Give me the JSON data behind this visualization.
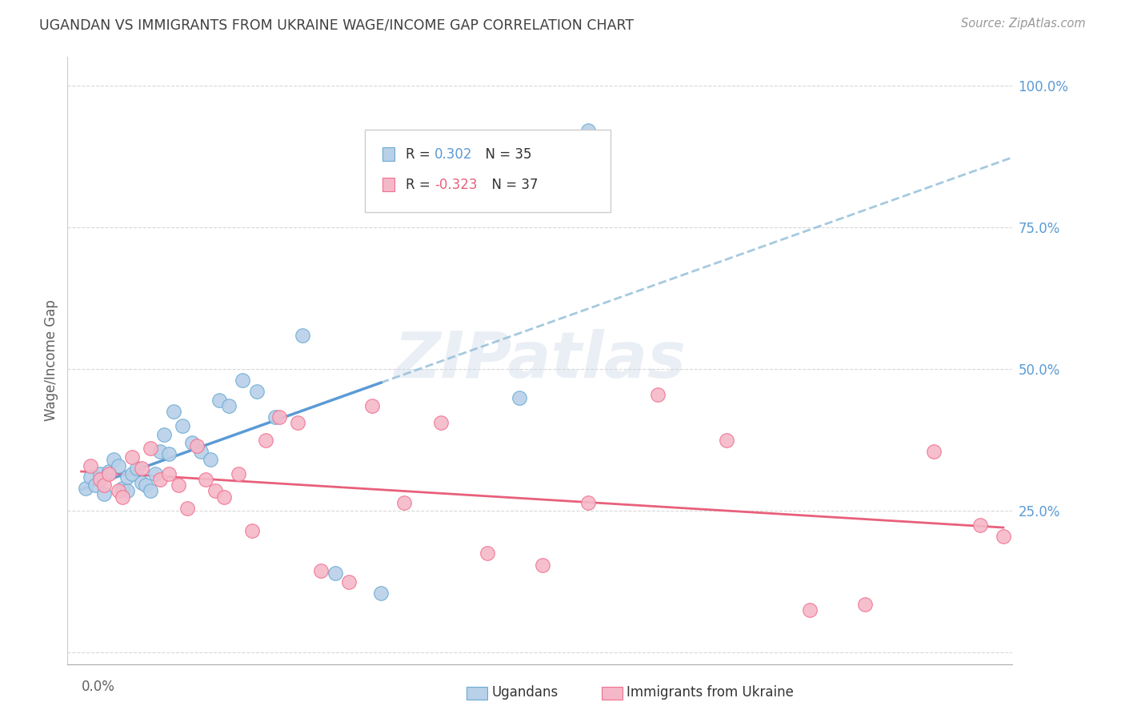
{
  "title": "UGANDAN VS IMMIGRANTS FROM UKRAINE WAGE/INCOME GAP CORRELATION CHART",
  "source": "Source: ZipAtlas.com",
  "ylabel": "Wage/Income Gap",
  "watermark": "ZIPatlas",
  "legend_label1": "Ugandans",
  "legend_label2": "Immigrants from Ukraine",
  "blue_fill": "#b8d0e8",
  "pink_fill": "#f5b8c8",
  "blue_edge": "#6aaad4",
  "pink_edge": "#f07090",
  "blue_line": "#5b9bd5",
  "pink_line": "#e8607a",
  "blue_dash": "#90bcd8",
  "axis_tick_color": "#5b9bd5",
  "title_color": "#404040",
  "source_color": "#999999",
  "grid_color": "#d8d8d8",
  "ylabel_color": "#606060",
  "xlabel_color": "#606060",
  "ugandan_x": [
    0.001,
    0.002,
    0.003,
    0.004,
    0.005,
    0.006,
    0.007,
    0.008,
    0.009,
    0.01,
    0.01,
    0.011,
    0.012,
    0.013,
    0.014,
    0.015,
    0.016,
    0.017,
    0.018,
    0.019,
    0.02,
    0.022,
    0.024,
    0.026,
    0.028,
    0.03,
    0.032,
    0.035,
    0.038,
    0.042,
    0.048,
    0.055,
    0.065,
    0.095,
    0.11
  ],
  "ugandan_y": [
    0.29,
    0.31,
    0.295,
    0.315,
    0.28,
    0.32,
    0.34,
    0.33,
    0.29,
    0.285,
    0.31,
    0.315,
    0.325,
    0.3,
    0.295,
    0.285,
    0.315,
    0.355,
    0.385,
    0.35,
    0.425,
    0.4,
    0.37,
    0.355,
    0.34,
    0.445,
    0.435,
    0.48,
    0.46,
    0.415,
    0.56,
    0.14,
    0.105,
    0.45,
    0.92
  ],
  "ukraine_x": [
    0.002,
    0.004,
    0.005,
    0.006,
    0.008,
    0.009,
    0.011,
    0.013,
    0.015,
    0.017,
    0.019,
    0.021,
    0.023,
    0.025,
    0.027,
    0.029,
    0.031,
    0.034,
    0.037,
    0.04,
    0.043,
    0.047,
    0.052,
    0.058,
    0.063,
    0.07,
    0.078,
    0.088,
    0.1,
    0.11,
    0.125,
    0.14,
    0.158,
    0.17,
    0.185,
    0.195,
    0.2
  ],
  "ukraine_y": [
    0.33,
    0.305,
    0.295,
    0.315,
    0.285,
    0.275,
    0.345,
    0.325,
    0.36,
    0.305,
    0.315,
    0.295,
    0.255,
    0.365,
    0.305,
    0.285,
    0.275,
    0.315,
    0.215,
    0.375,
    0.415,
    0.405,
    0.145,
    0.125,
    0.435,
    0.265,
    0.405,
    0.175,
    0.155,
    0.265,
    0.455,
    0.375,
    0.075,
    0.085,
    0.355,
    0.225,
    0.205
  ],
  "xmin": 0.0,
  "xmax": 0.2,
  "ymin": 0.0,
  "ymax": 1.05,
  "yticks": [
    0.0,
    0.25,
    0.5,
    0.75,
    1.0
  ],
  "ytick_labels": [
    "",
    "25.0%",
    "50.0%",
    "75.0%",
    "100.0%"
  ]
}
